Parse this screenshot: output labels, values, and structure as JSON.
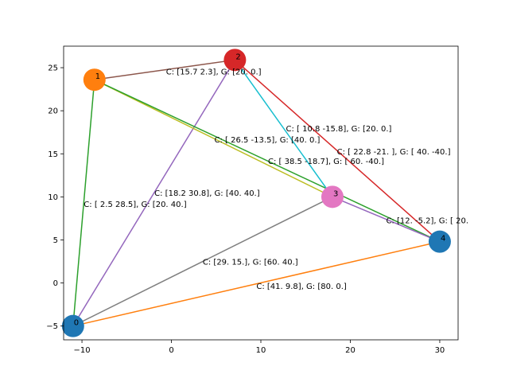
{
  "chart_data": {
    "type": "scatter",
    "title": "",
    "xlabel": "",
    "ylabel": "",
    "xlim": [
      -12.05,
      32.05
    ],
    "ylim": [
      -6.6,
      27.5
    ],
    "grid": false,
    "x_ticks": [
      -10,
      0,
      10,
      20,
      30
    ],
    "y_ticks": [
      -5,
      0,
      5,
      10,
      15,
      20,
      25
    ],
    "nodes": [
      {
        "id": "0",
        "x": -11,
        "y": -5,
        "color": "#1f77b4"
      },
      {
        "id": "1",
        "x": -8.6,
        "y": 23.6,
        "color": "#ff7f0e"
      },
      {
        "id": "2",
        "x": 7.1,
        "y": 25.9,
        "color": "#d62728"
      },
      {
        "id": "3",
        "x": 18,
        "y": 10,
        "color": "#e377c2"
      },
      {
        "id": "4",
        "x": 30,
        "y": 4.8,
        "color": "#1f77b4"
      }
    ],
    "edges": [
      {
        "from": 0,
        "to": 1,
        "color": "#2ca02c",
        "label": "C: [ 2.5 28.5], G: [20. 40.]",
        "label_x": -9.8,
        "label_y": 9.2
      },
      {
        "from": 0,
        "to": 2,
        "color": "#9467bd",
        "label": "C: [18.2 30.8], G: [40. 40.]",
        "label_x": -1.9,
        "label_y": 10.5
      },
      {
        "from": 0,
        "to": 3,
        "color": "#7f7f7f",
        "label": "C: [29. 15.], G: [60. 40.]",
        "label_x": 3.5,
        "label_y": 2.5
      },
      {
        "from": 0,
        "to": 4,
        "color": "#ff7f0e",
        "label": "C: [41.   9.8], G: [80.  0.]",
        "label_x": 9.5,
        "label_y": -0.3
      },
      {
        "from": 1,
        "to": 2,
        "color": "#8c564b",
        "label": "C: [15.7  2.3], G: [20.  0.]",
        "label_x": -0.6,
        "label_y": 24.6
      },
      {
        "from": 1,
        "to": 3,
        "color": "#bcbd22",
        "label": "C: [ 26.5 -13.5], G: [40.  0.]",
        "label_x": 4.8,
        "label_y": 16.7
      },
      {
        "from": 1,
        "to": 4,
        "color": "#2ca02c",
        "label": "C: [ 38.5 -18.7], G: [ 60. -40.]",
        "label_x": 10.8,
        "label_y": 14.2
      },
      {
        "from": 2,
        "to": 3,
        "color": "#17becf",
        "label": "C: [ 10.8 -15.8], G: [20.  0.]",
        "label_x": 12.8,
        "label_y": 18.0
      },
      {
        "from": 2,
        "to": 4,
        "color": "#d62728",
        "label": "C: [ 22.8 -21. ], G: [ 40. -40.]",
        "label_x": 18.5,
        "label_y": 15.3
      },
      {
        "from": 3,
        "to": 4,
        "color": "#9467bd",
        "label": "C: [12.  -5.2], G: [ 20.",
        "label_x": 24.0,
        "label_y": 7.3
      }
    ]
  }
}
